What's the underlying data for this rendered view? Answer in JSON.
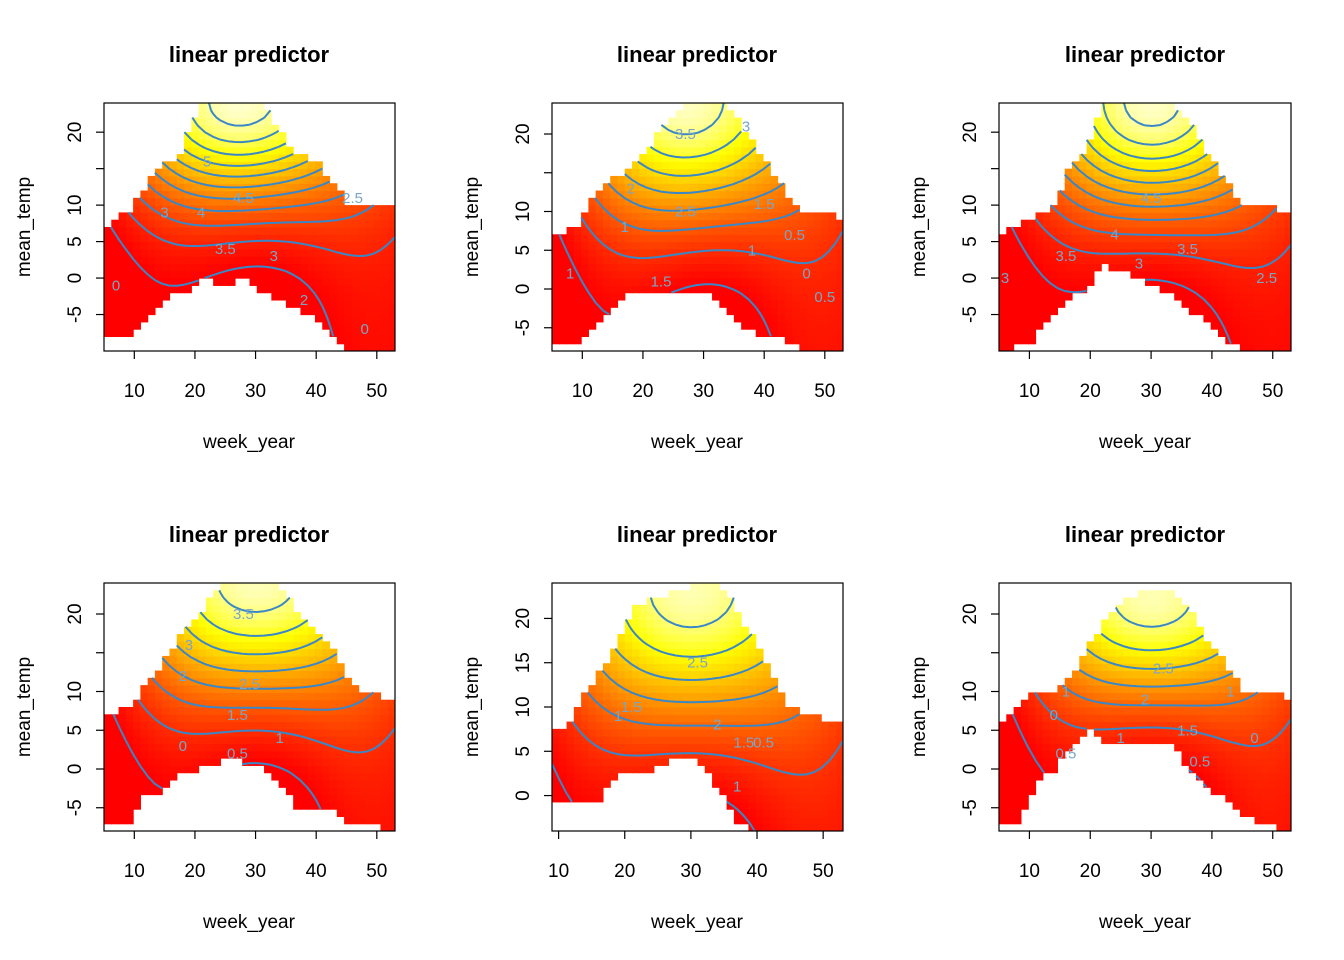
{
  "figure": {
    "layout": "2x3 grid",
    "palette": "heat",
    "contour_color": "#3a87c8",
    "label_color": "#7aa6c6"
  },
  "chart_data": [
    {
      "type": "heatmap",
      "title": "linear predictor",
      "xlabel": "week_year",
      "ylabel": "mean_temp",
      "xlim": [
        5,
        53
      ],
      "ylim": [
        -10,
        24
      ],
      "xticks": [
        10,
        20,
        30,
        40,
        50
      ],
      "yticks": [
        -5,
        0,
        5,
        10,
        15,
        20
      ],
      "yticklabels": [
        "-5",
        "0",
        "5",
        "10",
        "",
        "20"
      ],
      "z_range": [
        0,
        5.5
      ],
      "columns": [
        [
          5,
          -8,
          7
        ],
        [
          9,
          -8,
          9
        ],
        [
          12,
          -6,
          13
        ],
        [
          15,
          -3,
          16
        ],
        [
          17,
          -2,
          16
        ],
        [
          19,
          -2,
          20
        ],
        [
          21,
          0,
          24
        ],
        [
          24,
          -1,
          24
        ],
        [
          28,
          0,
          24
        ],
        [
          31,
          -2,
          24
        ],
        [
          34,
          -3,
          20
        ],
        [
          37,
          -4,
          17
        ],
        [
          40,
          -6,
          16
        ],
        [
          43,
          -8,
          13
        ],
        [
          45,
          -10,
          10
        ],
        [
          49,
          -10,
          10
        ],
        [
          53,
          -10,
          10
        ]
      ],
      "peak": [
        28,
        24
      ],
      "wx": 14,
      "wy": 10,
      "slope_x": 0.012,
      "slope_y": 0.01,
      "contours": [
        0,
        0.5,
        1,
        1.5,
        2,
        2.5,
        3,
        3.5,
        4,
        4.5,
        5
      ],
      "labels": [
        {
          "text": "5",
          "x": 22,
          "y": 16
        },
        {
          "text": "4.5",
          "x": 28,
          "y": 11
        },
        {
          "text": "4",
          "x": 21,
          "y": 9
        },
        {
          "text": "3",
          "x": 15,
          "y": 9
        },
        {
          "text": "3.5",
          "x": 25,
          "y": 4
        },
        {
          "text": "3",
          "x": 33,
          "y": 3
        },
        {
          "text": "2.5",
          "x": 46,
          "y": 11
        },
        {
          "text": "2",
          "x": 38,
          "y": -3
        },
        {
          "text": "0",
          "x": 48,
          "y": -7
        },
        {
          "text": "0",
          "x": 7,
          "y": -1
        }
      ]
    },
    {
      "type": "heatmap",
      "title": "linear predictor",
      "xlabel": "week_year",
      "ylabel": "mean_temp",
      "xlim": [
        5,
        53
      ],
      "ylim": [
        -8,
        24
      ],
      "xticks": [
        10,
        20,
        30,
        40,
        50
      ],
      "yticks": [
        -5,
        0,
        5,
        10,
        15,
        20
      ],
      "yticklabels": [
        "-5",
        "0",
        "5",
        "10",
        "",
        "20"
      ],
      "z_range": [
        0,
        4
      ],
      "columns": [
        [
          5,
          -7,
          7
        ],
        [
          9,
          -7,
          8
        ],
        [
          12,
          -5,
          12
        ],
        [
          15,
          -3,
          14
        ],
        [
          18,
          0,
          16
        ],
        [
          21,
          0,
          18
        ],
        [
          24,
          -1,
          22
        ],
        [
          28,
          0,
          24
        ],
        [
          31,
          -1,
          24
        ],
        [
          34,
          -3,
          24
        ],
        [
          37,
          -5,
          20
        ],
        [
          40,
          -6,
          17
        ],
        [
          43,
          -6,
          13
        ],
        [
          46,
          -8,
          10
        ],
        [
          49,
          -8,
          10
        ],
        [
          53,
          -8,
          9
        ]
      ],
      "peak": [
        28,
        24
      ],
      "wx": 13,
      "wy": 11,
      "slope_x": 0.01,
      "slope_y": 0.008,
      "contours": [
        0,
        0.5,
        1,
        1.5,
        2,
        2.5,
        3,
        3.5
      ],
      "labels": [
        {
          "text": "3.5",
          "x": 27,
          "y": 20
        },
        {
          "text": "3",
          "x": 37,
          "y": 21
        },
        {
          "text": "2",
          "x": 18,
          "y": 13
        },
        {
          "text": "2.5",
          "x": 27,
          "y": 10
        },
        {
          "text": "1.5",
          "x": 40,
          "y": 11
        },
        {
          "text": "1",
          "x": 17,
          "y": 8
        },
        {
          "text": "1.5",
          "x": 23,
          "y": 1
        },
        {
          "text": "1",
          "x": 38,
          "y": 5
        },
        {
          "text": "0.5",
          "x": 45,
          "y": 7
        },
        {
          "text": "0",
          "x": 47,
          "y": 2
        },
        {
          "text": "0.5",
          "x": 50,
          "y": -1
        },
        {
          "text": "1",
          "x": 8,
          "y": 2
        }
      ]
    },
    {
      "type": "heatmap",
      "title": "linear predictor",
      "xlabel": "week_year",
      "ylabel": "mean_temp",
      "xlim": [
        5,
        53
      ],
      "ylim": [
        -10,
        24
      ],
      "xticks": [
        10,
        20,
        30,
        40,
        50
      ],
      "yticks": [
        -5,
        0,
        5,
        10,
        15,
        20
      ],
      "yticklabels": [
        "-5",
        "0",
        "5",
        "10",
        "",
        "20"
      ],
      "z_range": [
        0,
        5.5
      ],
      "columns": [
        [
          5,
          -10,
          6
        ],
        [
          10,
          -9,
          8
        ],
        [
          14,
          -5,
          10
        ],
        [
          17,
          -2,
          16
        ],
        [
          19,
          -2,
          17
        ],
        [
          22,
          2,
          24
        ],
        [
          25,
          1,
          24
        ],
        [
          30,
          -1,
          24
        ],
        [
          33,
          -2,
          24
        ],
        [
          36,
          -4,
          22
        ],
        [
          39,
          -6,
          17
        ],
        [
          42,
          -8,
          14
        ],
        [
          45,
          -10,
          10
        ],
        [
          49,
          -10,
          10
        ],
        [
          53,
          -10,
          9
        ]
      ],
      "peak": [
        30,
        24
      ],
      "wx": 13,
      "wy": 11,
      "slope_x": 0.012,
      "slope_y": 0.01,
      "contours": [
        0,
        0.5,
        1,
        1.5,
        2,
        2.5,
        3,
        3.5,
        4,
        4.5,
        5
      ],
      "labels": [
        {
          "text": "4.5",
          "x": 30,
          "y": 11
        },
        {
          "text": "4",
          "x": 24,
          "y": 6
        },
        {
          "text": "3.5",
          "x": 36,
          "y": 4
        },
        {
          "text": "3",
          "x": 28,
          "y": 2
        },
        {
          "text": "3.5",
          "x": 16,
          "y": 3
        },
        {
          "text": "2.5",
          "x": 49,
          "y": 0
        },
        {
          "text": "3",
          "x": 6,
          "y": 0
        }
      ]
    },
    {
      "type": "heatmap",
      "title": "linear predictor",
      "xlabel": "week_year",
      "ylabel": "mean_temp",
      "xlim": [
        5,
        53
      ],
      "ylim": [
        -8,
        24
      ],
      "xticks": [
        10,
        20,
        30,
        40,
        50
      ],
      "yticks": [
        -5,
        0,
        5,
        10,
        15,
        20
      ],
      "yticklabels": [
        "-5",
        "0",
        "5",
        "10",
        "",
        "20"
      ],
      "z_range": [
        0,
        4
      ],
      "columns": [
        [
          5,
          -7,
          7
        ],
        [
          9,
          -7,
          8
        ],
        [
          12,
          -3,
          11
        ],
        [
          15,
          -3,
          14
        ],
        [
          18,
          0,
          18
        ],
        [
          21,
          0,
          20
        ],
        [
          24,
          1,
          24
        ],
        [
          28,
          1,
          24
        ],
        [
          31,
          0,
          24
        ],
        [
          34,
          -2,
          24
        ],
        [
          37,
          -5,
          20
        ],
        [
          40,
          -5,
          18
        ],
        [
          43,
          -5,
          15
        ],
        [
          45,
          -7,
          12
        ],
        [
          48,
          -7,
          10
        ],
        [
          53,
          -8,
          9
        ]
      ],
      "peak": [
        30,
        24
      ],
      "wx": 14,
      "wy": 11,
      "slope_x": 0.01,
      "slope_y": 0.008,
      "contours": [
        0,
        0.5,
        1,
        1.5,
        2,
        2.5,
        3,
        3.5
      ],
      "labels": [
        {
          "text": "3.5",
          "x": 28,
          "y": 20
        },
        {
          "text": "3",
          "x": 19,
          "y": 16
        },
        {
          "text": "2",
          "x": 18,
          "y": 12
        },
        {
          "text": "2.5",
          "x": 29,
          "y": 11
        },
        {
          "text": "1.5",
          "x": 27,
          "y": 7
        },
        {
          "text": "1",
          "x": 34,
          "y": 4
        },
        {
          "text": "0",
          "x": 18,
          "y": 3
        },
        {
          "text": "0.5",
          "x": 27,
          "y": 2
        }
      ]
    },
    {
      "type": "heatmap",
      "title": "linear predictor",
      "xlabel": "week_year",
      "ylabel": "mean_temp",
      "xlim": [
        9,
        53
      ],
      "ylim": [
        -4,
        24
      ],
      "xticks": [
        10,
        20,
        30,
        40,
        50
      ],
      "yticks": [
        0,
        5,
        10,
        15,
        20
      ],
      "yticklabels": [
        "0",
        "5",
        "10",
        "15",
        "20"
      ],
      "z_range": [
        0,
        3.5
      ],
      "columns": [
        [
          9,
          -1,
          7
        ],
        [
          11,
          -1,
          8
        ],
        [
          13,
          -1,
          10
        ],
        [
          16,
          -1,
          14
        ],
        [
          18,
          2,
          16
        ],
        [
          21,
          3,
          21
        ],
        [
          24,
          3,
          22
        ],
        [
          27,
          4,
          23
        ],
        [
          31,
          4,
          24
        ],
        [
          34,
          1,
          24
        ],
        [
          37,
          -3,
          21
        ],
        [
          40,
          -4,
          17
        ],
        [
          43,
          -4,
          13
        ],
        [
          45,
          -4,
          10
        ],
        [
          48,
          -4,
          9
        ],
        [
          53,
          -4,
          8
        ]
      ],
      "peak": [
        30,
        23
      ],
      "wx": 13,
      "wy": 11,
      "slope_x": 0.01,
      "slope_y": 0.008,
      "contours": [
        0,
        0.5,
        1,
        1.5,
        2,
        2.5,
        3
      ],
      "labels": [
        {
          "text": "1.5",
          "x": 21,
          "y": 10
        },
        {
          "text": "1",
          "x": 19,
          "y": 9
        },
        {
          "text": "2.5",
          "x": 31,
          "y": 15
        },
        {
          "text": "2",
          "x": 34,
          "y": 8
        },
        {
          "text": "1.5",
          "x": 38,
          "y": 6
        },
        {
          "text": "1",
          "x": 37,
          "y": 1
        },
        {
          "text": "0.5",
          "x": 41,
          "y": 6
        }
      ]
    },
    {
      "type": "heatmap",
      "title": "linear predictor",
      "xlabel": "week_year",
      "ylabel": "mean_temp",
      "xlim": [
        5,
        53
      ],
      "ylim": [
        -8,
        24
      ],
      "xticks": [
        10,
        20,
        30,
        40,
        50
      ],
      "yticks": [
        -5,
        0,
        5,
        10,
        15,
        20
      ],
      "yticklabels": [
        "-5",
        "0",
        "5",
        "10",
        "",
        "20"
      ],
      "z_range": [
        0,
        3.5
      ],
      "columns": [
        [
          5,
          -7,
          6
        ],
        [
          8,
          -7,
          8
        ],
        [
          11,
          -2,
          10
        ],
        [
          14,
          0,
          10
        ],
        [
          17,
          3,
          12
        ],
        [
          20,
          5,
          16
        ],
        [
          23,
          3,
          20
        ],
        [
          26,
          3,
          22
        ],
        [
          30,
          3,
          23
        ],
        [
          33,
          4,
          23
        ],
        [
          36,
          0,
          21
        ],
        [
          39,
          -2,
          17
        ],
        [
          42,
          -4,
          14
        ],
        [
          45,
          -6,
          10
        ],
        [
          49,
          -7,
          10
        ],
        [
          53,
          -8,
          9
        ]
      ],
      "peak": [
        30,
        22
      ],
      "wx": 13,
      "wy": 10,
      "slope_x": 0.01,
      "slope_y": 0.008,
      "contours": [
        0,
        0.5,
        1,
        1.5,
        2,
        2.5,
        3
      ],
      "labels": [
        {
          "text": "2.5",
          "x": 32,
          "y": 13
        },
        {
          "text": "2",
          "x": 29,
          "y": 9
        },
        {
          "text": "1.5",
          "x": 36,
          "y": 5
        },
        {
          "text": "1",
          "x": 16,
          "y": 10
        },
        {
          "text": "0",
          "x": 14,
          "y": 7
        },
        {
          "text": "0.5",
          "x": 16,
          "y": 2
        },
        {
          "text": "1",
          "x": 25,
          "y": 4
        },
        {
          "text": "0.5",
          "x": 38,
          "y": 1
        },
        {
          "text": "1",
          "x": 43,
          "y": 10
        },
        {
          "text": "0",
          "x": 47,
          "y": 4
        }
      ]
    }
  ]
}
